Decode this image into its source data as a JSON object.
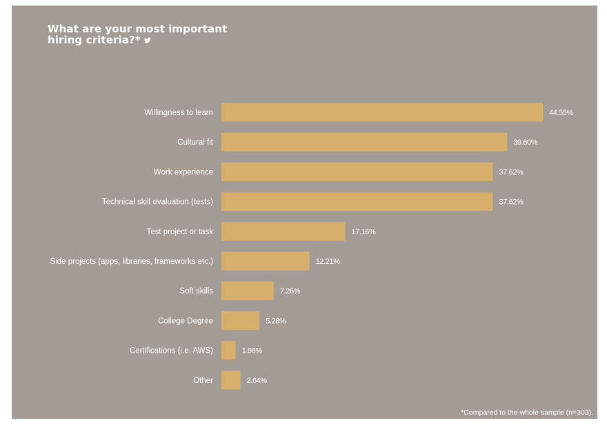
{
  "title_line1": "What are your most important",
  "title_line2": "hiring criteria?*",
  "title_icon": "twitter-icon",
  "footnote": "*Compared to the whole sample (n=303).",
  "colors": {
    "background": "#a39c96",
    "bar": "#d8ae6b",
    "text": "#ffffff"
  },
  "chart_data": {
    "type": "bar",
    "orientation": "horizontal",
    "title": "What are your most important hiring criteria?*",
    "categories": [
      "Willingness to learn",
      "Cultural fit",
      "Work experience",
      "Technical skill evaluation (tests)",
      "Test project or task",
      "Side projects (apps, libraries, frameworks etc.)",
      "Soft skills",
      "College Degree",
      "Certifications (i.e. AWS)",
      "Other"
    ],
    "values": [
      44.55,
      39.6,
      37.62,
      37.62,
      17.16,
      12.21,
      7.26,
      5.28,
      1.98,
      2.64
    ],
    "labels": [
      "44.55%",
      "39.60%",
      "37.62%",
      "37.62%",
      "17.16%",
      "12.21%",
      "7.26%",
      "5.28%",
      "1.98%",
      "2.64%"
    ],
    "unit": "%",
    "grid": false,
    "legend": "none"
  }
}
